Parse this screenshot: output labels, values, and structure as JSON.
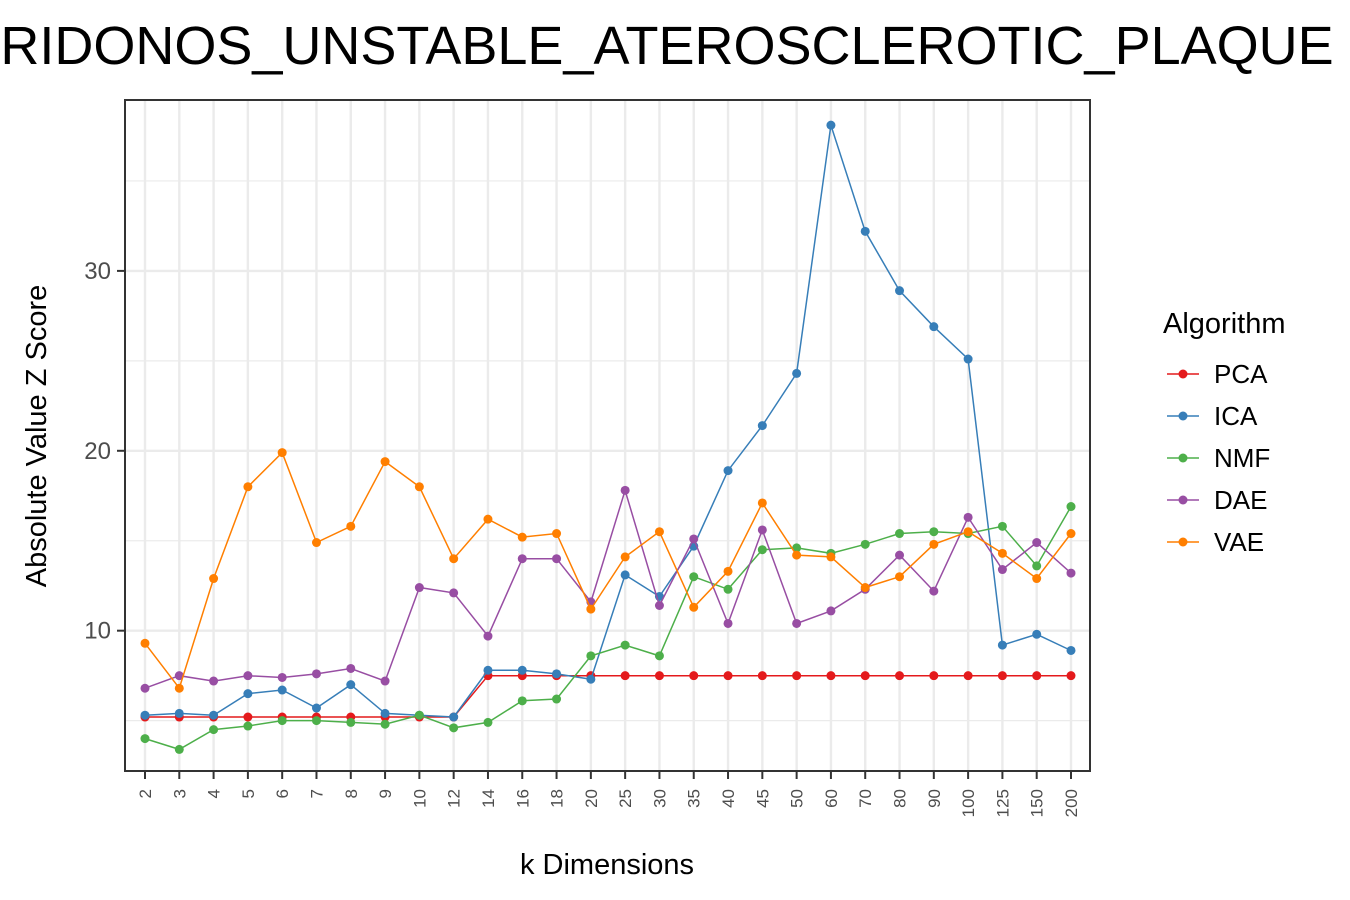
{
  "chart_data": {
    "type": "line",
    "title": "RIDONOS_UNSTABLE_ATEROSCLEROTIC_PLAQUE",
    "xlabel": "k Dimensions",
    "ylabel": "Absolute Value Z Score",
    "categories": [
      "2",
      "3",
      "4",
      "5",
      "6",
      "7",
      "8",
      "9",
      "10",
      "12",
      "14",
      "16",
      "18",
      "20",
      "25",
      "30",
      "35",
      "40",
      "45",
      "50",
      "60",
      "70",
      "80",
      "90",
      "100",
      "125",
      "150",
      "200"
    ],
    "y_ticks": [
      10,
      20,
      30
    ],
    "ylim": [
      2.2,
      39.5
    ],
    "grid": true,
    "legend_title": "Algorithm",
    "legend_position": "right",
    "series": [
      {
        "name": "PCA",
        "color": "#E41A1C",
        "values": [
          5.2,
          5.2,
          5.2,
          5.2,
          5.2,
          5.2,
          5.2,
          5.2,
          5.2,
          5.2,
          7.5,
          7.5,
          7.5,
          7.5,
          7.5,
          7.5,
          7.5,
          7.5,
          7.5,
          7.5,
          7.5,
          7.5,
          7.5,
          7.5,
          7.5,
          7.5,
          7.5,
          7.5
        ]
      },
      {
        "name": "ICA",
        "color": "#377EB8",
        "values": [
          5.3,
          5.4,
          5.3,
          6.5,
          6.7,
          5.7,
          7.0,
          5.4,
          5.3,
          5.2,
          7.8,
          7.8,
          7.6,
          7.3,
          13.1,
          11.9,
          14.7,
          18.9,
          21.4,
          24.3,
          38.1,
          32.2,
          28.9,
          26.9,
          25.1,
          9.2,
          9.8,
          8.9
        ]
      },
      {
        "name": "NMF",
        "color": "#4DAF4A",
        "values": [
          4.0,
          3.4,
          4.5,
          4.7,
          5.0,
          5.0,
          4.9,
          4.8,
          5.3,
          4.6,
          4.9,
          6.1,
          6.2,
          8.6,
          9.2,
          8.6,
          13.0,
          12.3,
          14.5,
          14.6,
          14.3,
          14.8,
          15.4,
          15.5,
          15.4,
          15.8,
          13.6,
          16.9
        ]
      },
      {
        "name": "DAE",
        "color": "#984EA3",
        "values": [
          6.8,
          7.5,
          7.2,
          7.5,
          7.4,
          7.6,
          7.9,
          7.2,
          12.4,
          12.1,
          9.7,
          14.0,
          14.0,
          11.6,
          17.8,
          11.4,
          15.1,
          10.4,
          15.6,
          10.4,
          11.1,
          12.3,
          14.2,
          12.2,
          16.3,
          13.4,
          14.9,
          13.2
        ]
      },
      {
        "name": "VAE",
        "color": "#FF7F00",
        "values": [
          9.3,
          6.8,
          12.9,
          18.0,
          19.9,
          14.9,
          15.8,
          19.4,
          18.0,
          14.0,
          16.2,
          15.2,
          15.4,
          11.2,
          14.1,
          15.5,
          11.3,
          13.3,
          17.1,
          14.2,
          14.1,
          12.4,
          13.0,
          14.8,
          15.5,
          14.3,
          12.9,
          15.4
        ]
      }
    ]
  }
}
